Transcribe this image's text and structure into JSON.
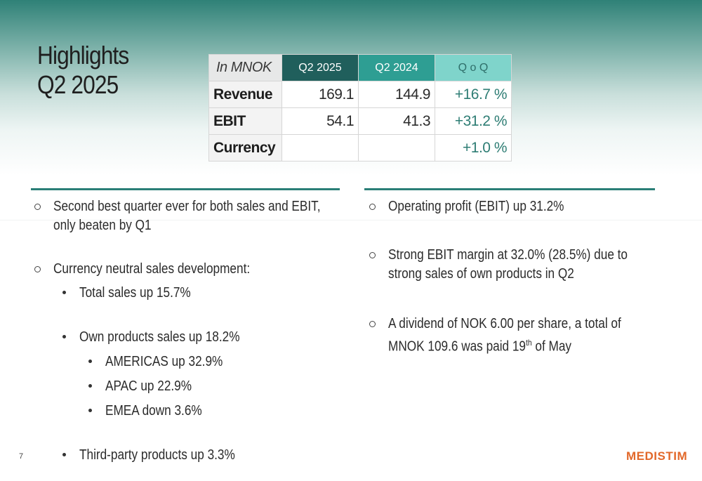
{
  "title": {
    "line1": "Highlights",
    "line2": "Q2 2025"
  },
  "table": {
    "unit_label": "In MNOK",
    "headers": [
      "Q2 2025",
      "Q2 2024",
      "Q o Q"
    ],
    "rows": [
      {
        "label": "Revenue",
        "q2_2025": "169.1",
        "q2_2024": "144.9",
        "qoq": "+16.7 %"
      },
      {
        "label": "EBIT",
        "q2_2025": "54.1",
        "q2_2024": "41.3",
        "qoq": "+31.2 %"
      },
      {
        "label": "Currency",
        "q2_2025": "",
        "q2_2024": "",
        "qoq": "+1.0 %"
      }
    ]
  },
  "left_bullets": {
    "b1_line1": "Second best quarter ever for both sales and EBIT,",
    "b1_line2": "only beaten by Q1",
    "b2": "Currency neutral sales development:",
    "sub1": "Total sales up 15.7%",
    "sub2": "Own products sales up 18.2%",
    "sub2a": "AMERICAS up 32.9%",
    "sub2b": "APAC up 22.9%",
    "sub2c": "EMEA down 3.6%",
    "sub3": "Third-party products up 3.3%"
  },
  "right_bullets": {
    "b1": "Operating profit (EBIT) up 31.2%",
    "b2_line1": "Strong EBIT margin at 32.0% (28.5%) due to",
    "b2_line2": "strong sales of own products in Q2",
    "b3_line1": "A dividend of NOK 6.00 per share, a total of",
    "b3_line2_pre": "MNOK 109.6 was paid 19",
    "b3_line2_sup": "th",
    "b3_line2_post": " of May"
  },
  "footer": {
    "page_number": "7",
    "logo_text": "MEDISTIM"
  },
  "colors": {
    "dark_teal": "#205f5c",
    "teal": "#2e9e93",
    "light_teal": "#7fd4cb",
    "accent_orange": "#e2682a"
  }
}
